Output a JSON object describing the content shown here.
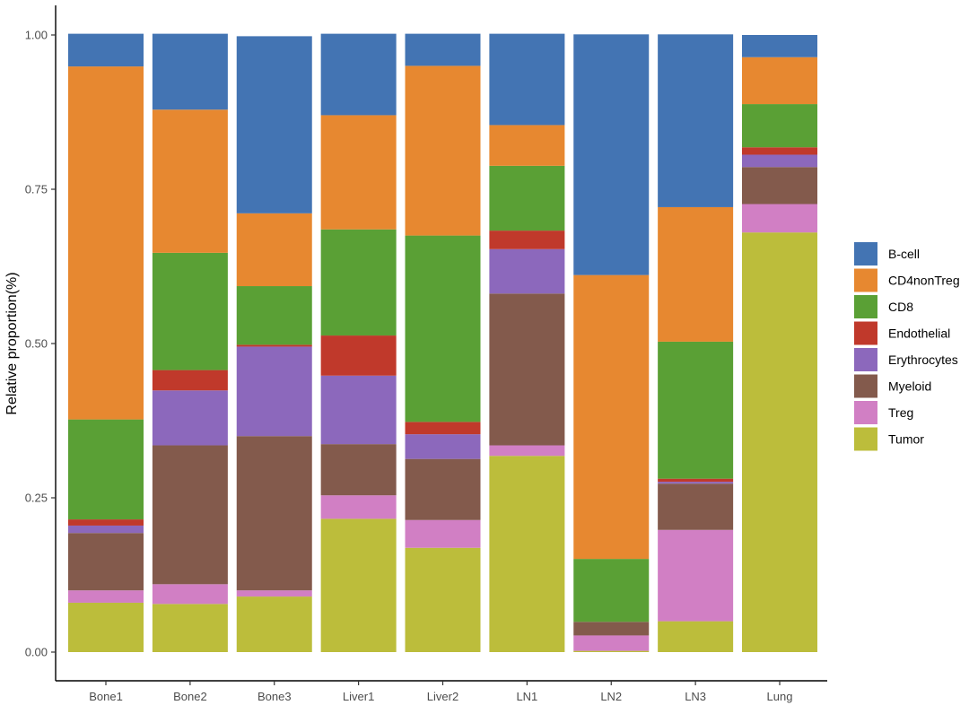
{
  "chart_data": {
    "type": "bar",
    "stacked": true,
    "title": "",
    "xlabel": "",
    "ylabel": "Relative proportion(%)",
    "ylim": [
      0,
      1
    ],
    "y_ticks": [
      0,
      0.25,
      0.5,
      0.75,
      1.0
    ],
    "y_tick_labels": [
      "0.00",
      "0.25",
      "0.50",
      "0.75",
      "1.00"
    ],
    "grid": false,
    "legend_position": "right",
    "categories": [
      "Bone1",
      "Bone2",
      "Bone3",
      "Liver1",
      "Liver2",
      "LN1",
      "LN2",
      "LN3",
      "Lung"
    ],
    "series": [
      {
        "name": "Tumor",
        "color": "#bcbd3b",
        "values": [
          0.08,
          0.078,
          0.09,
          0.216,
          0.169,
          0.318,
          0.002,
          0.05,
          0.68
        ]
      },
      {
        "name": "Treg",
        "color": "#d17fc4",
        "values": [
          0.02,
          0.032,
          0.01,
          0.038,
          0.045,
          0.017,
          0.025,
          0.148,
          0.046
        ]
      },
      {
        "name": "Myeloid",
        "color": "#835a4c",
        "values": [
          0.093,
          0.225,
          0.25,
          0.083,
          0.099,
          0.246,
          0.022,
          0.075,
          0.06
        ]
      },
      {
        "name": "Erythrocytes",
        "color": "#8c68bc",
        "values": [
          0.012,
          0.089,
          0.145,
          0.111,
          0.04,
          0.072,
          0.0,
          0.003,
          0.02
        ]
      },
      {
        "name": "Endothelial",
        "color": "#c0392b",
        "values": [
          0.01,
          0.033,
          0.003,
          0.065,
          0.02,
          0.03,
          0.0,
          0.005,
          0.012
        ]
      },
      {
        "name": "CD8",
        "color": "#5aa035",
        "values": [
          0.162,
          0.19,
          0.095,
          0.172,
          0.302,
          0.105,
          0.102,
          0.222,
          0.07
        ]
      },
      {
        "name": "CD4nonTreg",
        "color": "#e78830",
        "values": [
          0.572,
          0.232,
          0.118,
          0.185,
          0.275,
          0.066,
          0.46,
          0.218,
          0.076
        ]
      },
      {
        "name": "B-cell",
        "color": "#4374b3",
        "values": [
          0.053,
          0.123,
          0.287,
          0.132,
          0.052,
          0.148,
          0.39,
          0.28,
          0.036
        ]
      }
    ],
    "legend": [
      {
        "name": "B-cell",
        "color": "#4374b3"
      },
      {
        "name": "CD4nonTreg",
        "color": "#e78830"
      },
      {
        "name": "CD8",
        "color": "#5aa035"
      },
      {
        "name": "Endothelial",
        "color": "#c0392b"
      },
      {
        "name": "Erythrocytes",
        "color": "#8c68bc"
      },
      {
        "name": "Myeloid",
        "color": "#835a4c"
      },
      {
        "name": "Treg",
        "color": "#d17fc4"
      },
      {
        "name": "Tumor",
        "color": "#bcbd3b"
      }
    ]
  }
}
